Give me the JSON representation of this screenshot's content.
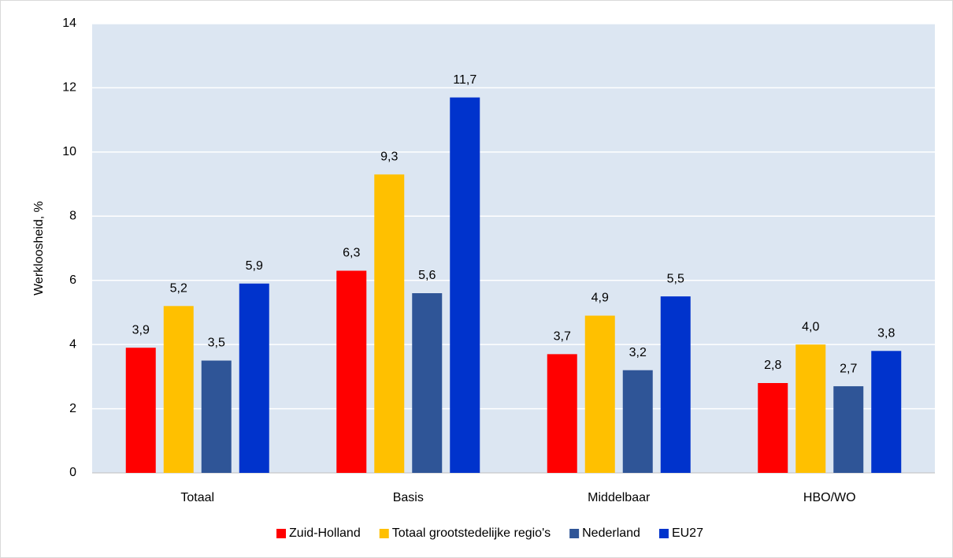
{
  "chart_data": {
    "type": "bar",
    "y_label": "Werkloosheid, %",
    "categories": [
      "Totaal",
      "Basis",
      "Middelbaar",
      "HBO/WO"
    ],
    "series": [
      {
        "name": "Zuid-Holland",
        "color": "#ff0000",
        "values": [
          3.9,
          6.3,
          3.7,
          2.8
        ],
        "value_labels": [
          "3,9",
          "6,3",
          "3,7",
          "2,8"
        ]
      },
      {
        "name": "Totaal grootstedelijke regio's",
        "color": "#ffc000",
        "values": [
          5.2,
          9.3,
          4.9,
          4.0
        ],
        "value_labels": [
          "5,2",
          "9,3",
          "4,9",
          "4,0"
        ]
      },
      {
        "name": "Nederland",
        "color": "#2f5597",
        "values": [
          3.5,
          5.6,
          3.2,
          2.7
        ],
        "value_labels": [
          "3,5",
          "5,6",
          "3,2",
          "2,7"
        ]
      },
      {
        "name": "EU27",
        "color": "#0033cc",
        "values": [
          5.9,
          11.7,
          5.5,
          3.8
        ],
        "value_labels": [
          "5,9",
          "11,7",
          "5,5",
          "3,8"
        ]
      }
    ],
    "ylim": [
      0,
      14
    ],
    "yticks": [
      0,
      2,
      4,
      6,
      8,
      10,
      12,
      14
    ],
    "grid": true,
    "legend": "bottom"
  }
}
